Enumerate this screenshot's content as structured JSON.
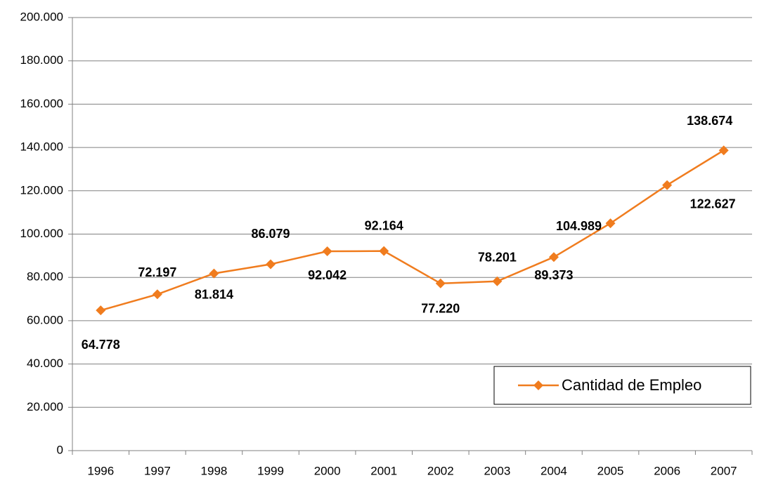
{
  "chart_data": {
    "type": "line",
    "categories": [
      "1996",
      "1997",
      "1998",
      "1999",
      "2000",
      "2001",
      "2002",
      "2003",
      "2004",
      "2005",
      "2006",
      "2007"
    ],
    "series": [
      {
        "name": "Cantidad de Empleo",
        "color": "#f07c1e",
        "values": [
          64778,
          72197,
          81814,
          86079,
          92042,
          92164,
          77220,
          78201,
          89373,
          104989,
          122627,
          138674
        ],
        "value_labels": [
          "64.778",
          "72.197",
          "81.814",
          "86.079",
          "92.042",
          "92.164",
          "77.220",
          "78.201",
          "89.373",
          "104.989",
          "122.627",
          "138.674"
        ]
      }
    ],
    "ylim": [
      0,
      200000
    ],
    "yticks": [
      0,
      {
        "value": 20000,
        "label": "20.000"
      },
      {
        "value": 40000,
        "label": "40.000"
      },
      {
        "value": 60000,
        "label": "60.000"
      },
      {
        "value": 80000,
        "label": "80.000"
      },
      {
        "value": 100000,
        "label": "100.000"
      },
      {
        "value": 120000,
        "label": "120.000"
      },
      {
        "value": 140000,
        "label": "140.000"
      },
      {
        "value": 160000,
        "label": "160.000"
      },
      {
        "value": 180000,
        "label": "180.000"
      },
      {
        "value": 200000,
        "label": "200.000"
      }
    ],
    "grid": true,
    "legend": "lower right"
  }
}
